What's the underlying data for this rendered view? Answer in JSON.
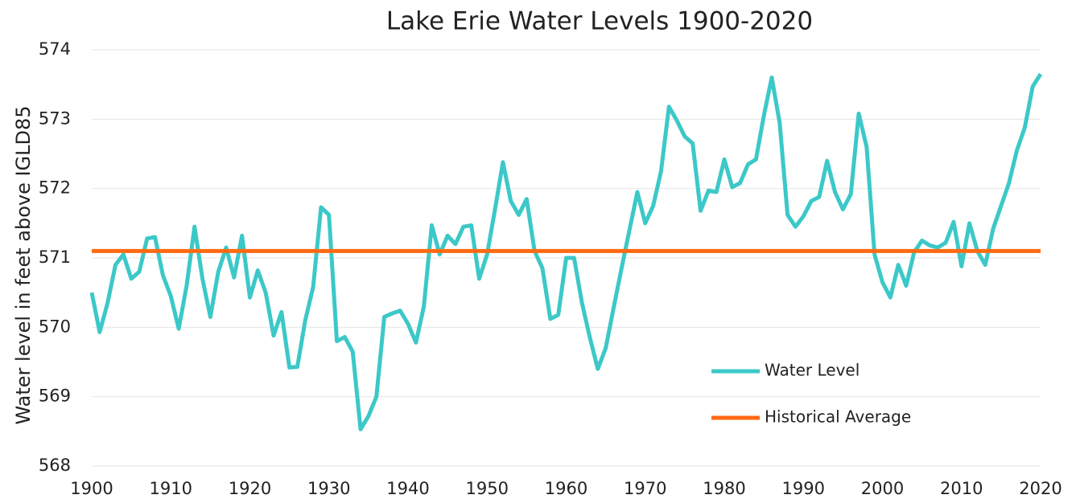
{
  "chart_data": {
    "type": "line",
    "title": "Lake Erie Water Levels 1900-2020",
    "y_label": "Water level in feet above IGLD85",
    "x": [
      1900,
      1901,
      1902,
      1903,
      1904,
      1905,
      1906,
      1907,
      1908,
      1909,
      1910,
      1911,
      1912,
      1913,
      1914,
      1915,
      1916,
      1917,
      1918,
      1919,
      1920,
      1921,
      1922,
      1923,
      1924,
      1925,
      1926,
      1927,
      1928,
      1929,
      1930,
      1931,
      1932,
      1933,
      1934,
      1935,
      1936,
      1937,
      1938,
      1939,
      1940,
      1941,
      1942,
      1943,
      1944,
      1945,
      1946,
      1947,
      1948,
      1949,
      1950,
      1951,
      1952,
      1953,
      1954,
      1955,
      1956,
      1957,
      1958,
      1959,
      1960,
      1961,
      1962,
      1963,
      1964,
      1965,
      1966,
      1967,
      1968,
      1969,
      1970,
      1971,
      1972,
      1973,
      1974,
      1975,
      1976,
      1977,
      1978,
      1979,
      1980,
      1981,
      1982,
      1983,
      1984,
      1985,
      1986,
      1987,
      1988,
      1989,
      1990,
      1991,
      1992,
      1993,
      1994,
      1995,
      1996,
      1997,
      1998,
      1999,
      2000,
      2001,
      2002,
      2003,
      2004,
      2005,
      2006,
      2007,
      2008,
      2009,
      2010,
      2011,
      2012,
      2013,
      2014,
      2015,
      2016,
      2017,
      2018,
      2019,
      2020
    ],
    "series": [
      {
        "name": "Water Level",
        "color": "#3cc8c8",
        "values": [
          570.5,
          569.93,
          570.35,
          570.9,
          571.05,
          570.7,
          570.8,
          571.28,
          571.3,
          570.75,
          570.45,
          569.98,
          570.6,
          571.45,
          570.7,
          570.15,
          570.8,
          571.15,
          570.72,
          571.32,
          570.43,
          570.82,
          570.5,
          569.88,
          570.22,
          569.42,
          569.43,
          570.1,
          570.58,
          571.73,
          571.62,
          569.8,
          569.86,
          569.65,
          568.53,
          568.72,
          569.0,
          570.15,
          570.2,
          570.24,
          570.05,
          569.78,
          570.3,
          571.47,
          571.05,
          571.32,
          571.2,
          571.45,
          571.47,
          570.7,
          571.05,
          571.7,
          572.38,
          571.82,
          571.62,
          571.85,
          571.1,
          570.85,
          570.12,
          570.18,
          571.0,
          571.0,
          570.35,
          569.85,
          569.4,
          569.7,
          570.28,
          570.85,
          571.4,
          571.95,
          571.5,
          571.75,
          572.25,
          573.18,
          572.98,
          572.75,
          572.65,
          571.68,
          571.97,
          571.95,
          572.42,
          572.02,
          572.08,
          572.35,
          572.42,
          573.05,
          573.6,
          572.95,
          571.62,
          571.45,
          571.6,
          571.82,
          571.88,
          572.4,
          571.95,
          571.7,
          571.92,
          573.08,
          572.6,
          571.05,
          570.65,
          570.43,
          570.9,
          570.6,
          571.08,
          571.25,
          571.18,
          571.15,
          571.22,
          571.52,
          570.88,
          571.5,
          571.1,
          570.9,
          571.42,
          571.75,
          572.08,
          572.55,
          572.88,
          573.47,
          573.65
        ]
      },
      {
        "name": "Historical Average",
        "color": "#ff6a13",
        "values": [
          571.1,
          571.1,
          571.1,
          571.1,
          571.1,
          571.1,
          571.1,
          571.1,
          571.1,
          571.1,
          571.1,
          571.1,
          571.1,
          571.1,
          571.1,
          571.1,
          571.1,
          571.1,
          571.1,
          571.1,
          571.1,
          571.1,
          571.1,
          571.1,
          571.1,
          571.1,
          571.1,
          571.1,
          571.1,
          571.1,
          571.1,
          571.1,
          571.1,
          571.1,
          571.1,
          571.1,
          571.1,
          571.1,
          571.1,
          571.1,
          571.1,
          571.1,
          571.1,
          571.1,
          571.1,
          571.1,
          571.1,
          571.1,
          571.1,
          571.1,
          571.1,
          571.1,
          571.1,
          571.1,
          571.1,
          571.1,
          571.1,
          571.1,
          571.1,
          571.1,
          571.1,
          571.1,
          571.1,
          571.1,
          571.1,
          571.1,
          571.1,
          571.1,
          571.1,
          571.1,
          571.1,
          571.1,
          571.1,
          571.1,
          571.1,
          571.1,
          571.1,
          571.1,
          571.1,
          571.1,
          571.1,
          571.1,
          571.1,
          571.1,
          571.1,
          571.1,
          571.1,
          571.1,
          571.1,
          571.1,
          571.1,
          571.1,
          571.1,
          571.1,
          571.1,
          571.1,
          571.1,
          571.1,
          571.1,
          571.1,
          571.1,
          571.1,
          571.1,
          571.1,
          571.1,
          571.1,
          571.1,
          571.1,
          571.1,
          571.1,
          571.1,
          571.1,
          571.1,
          571.1,
          571.1,
          571.1,
          571.1,
          571.1,
          571.1,
          571.1,
          571.1
        ]
      }
    ],
    "xlim": [
      1900,
      2020
    ],
    "xticks": [
      1900,
      1910,
      1920,
      1930,
      1940,
      1950,
      1960,
      1970,
      1980,
      1990,
      2000,
      2010,
      2020
    ],
    "ylim": [
      568,
      574
    ],
    "yticks": [
      568,
      569,
      570,
      571,
      572,
      573,
      574
    ],
    "grid": true,
    "legend": "lower right"
  }
}
